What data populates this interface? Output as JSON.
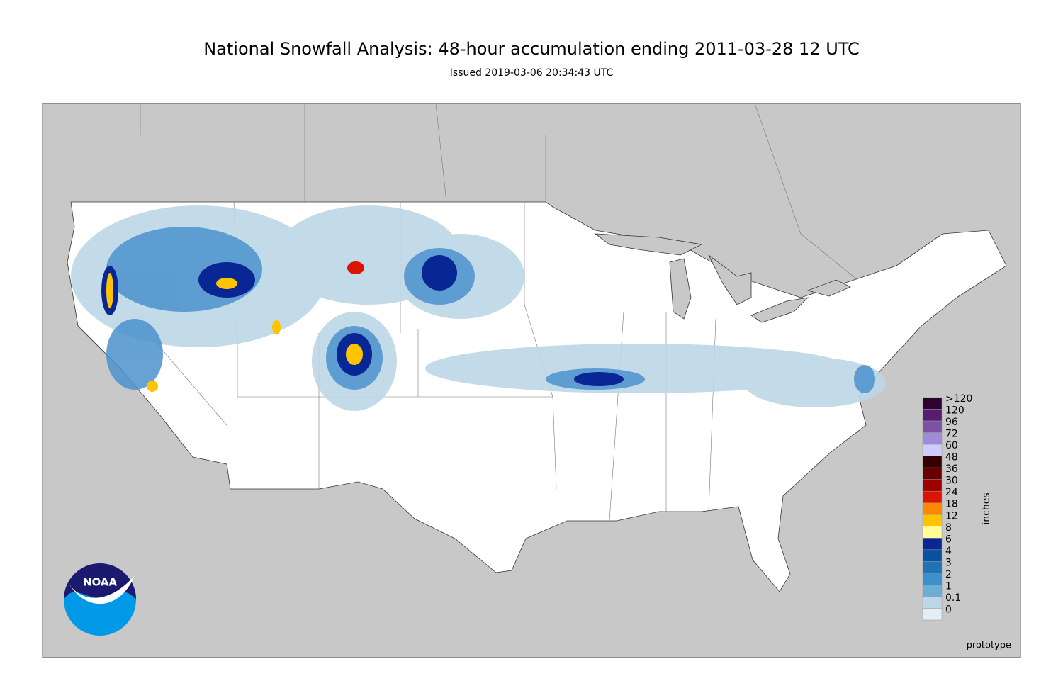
{
  "header": {
    "title": "National Snowfall Analysis: 48-hour accumulation ending 2011-03-28 12 UTC",
    "subtitle": "Issued 2019-03-06 20:34:43 UTC"
  },
  "legend": {
    "title": "inches",
    "items": [
      {
        "label": ">120",
        "color": "#2e0133"
      },
      {
        "label": "120",
        "color": "#561c72"
      },
      {
        "label": "96",
        "color": "#7c52a5"
      },
      {
        "label": "72",
        "color": "#9f8cd8"
      },
      {
        "label": "60",
        "color": "#ccccff"
      },
      {
        "label": "48",
        "color": "#360000"
      },
      {
        "label": "36",
        "color": "#690000"
      },
      {
        "label": "30",
        "color": "#9e0000"
      },
      {
        "label": "24",
        "color": "#db1400"
      },
      {
        "label": "18",
        "color": "#ff8700"
      },
      {
        "label": "12",
        "color": "#ffc400"
      },
      {
        "label": "8",
        "color": "#ffff96"
      },
      {
        "label": "6",
        "color": "#082694"
      },
      {
        "label": "4",
        "color": "#08519c"
      },
      {
        "label": "3",
        "color": "#2171b5"
      },
      {
        "label": "2",
        "color": "#3f8fcc"
      },
      {
        "label": "1",
        "color": "#6baed6"
      },
      {
        "label": "0.1",
        "color": "#bdd7e7"
      },
      {
        "label": "0",
        "color": "#e4eef9"
      }
    ]
  },
  "watermark": "prototype",
  "logo": {
    "text": "NOAA"
  }
}
